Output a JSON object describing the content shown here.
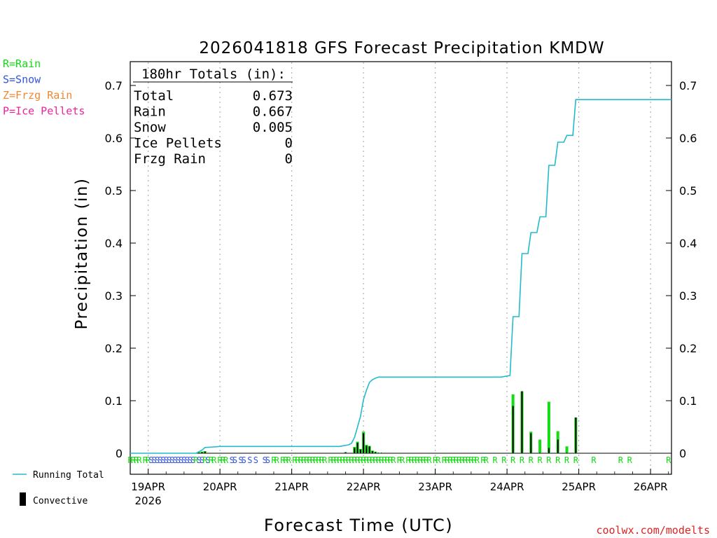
{
  "chart_data": {
    "type": "bar",
    "title": "2026041818 GFS Forecast Precipitation KMDW",
    "xlabel": "Forecast Time (UTC)",
    "ylabel": "Precipitation (in)",
    "ylim": [
      0,
      0.74
    ],
    "y_ticks": [
      0,
      0.1,
      0.2,
      0.3,
      0.4,
      0.5,
      0.6,
      0.7
    ],
    "y_tick_labels": [
      "0",
      "0.1",
      "0.2",
      "0.3",
      "0.4",
      "0.5",
      "0.6",
      "0.7"
    ],
    "x_unit": "hours since 2026-04-18 18Z",
    "xlim": [
      0,
      181
    ],
    "x_ticks": [
      {
        "hour": 6,
        "label": "19APR",
        "sublabel": "2026"
      },
      {
        "hour": 30,
        "label": "20APR",
        "sublabel": ""
      },
      {
        "hour": 54,
        "label": "21APR",
        "sublabel": ""
      },
      {
        "hour": 78,
        "label": "22APR",
        "sublabel": ""
      },
      {
        "hour": 102,
        "label": "23APR",
        "sublabel": ""
      },
      {
        "hour": 126,
        "label": "24APR",
        "sublabel": ""
      },
      {
        "hour": 150,
        "label": "25APR",
        "sublabel": ""
      },
      {
        "hour": 174,
        "label": "26APR",
        "sublabel": ""
      }
    ],
    "grid": "vertical dotted at day boundaries",
    "legend": {
      "types": [
        {
          "code": "R",
          "label": "R=Rain",
          "color": "#11dd11"
        },
        {
          "code": "S",
          "label": "S=Snow",
          "color": "#3355dd"
        },
        {
          "code": "Z",
          "label": "Z=Frzg Rain",
          "color": "#ee8833"
        },
        {
          "code": "P",
          "label": "P=Ice Pellets",
          "color": "#ee2299"
        }
      ],
      "running_total_label": "Running Total",
      "running_total_color": "#22bbcc",
      "convective_label": "Convective",
      "convective_color": "#000000"
    },
    "totals_box": {
      "heading": "180hr Totals (in):",
      "rows": [
        {
          "label": "Total",
          "value": "0.673"
        },
        {
          "label": "Rain",
          "value": "0.667"
        },
        {
          "label": "Snow",
          "value": "0.005"
        },
        {
          "label": "Ice Pellets",
          "value": "0"
        },
        {
          "label": "Frzg Rain",
          "value": "0"
        }
      ]
    },
    "running_total": [
      [
        0,
        0
      ],
      [
        22,
        0
      ],
      [
        24,
        0.006
      ],
      [
        25,
        0.011
      ],
      [
        28,
        0.012
      ],
      [
        30,
        0.013
      ],
      [
        60,
        0.013
      ],
      [
        70,
        0.013
      ],
      [
        73,
        0.016
      ],
      [
        74,
        0.019
      ],
      [
        75,
        0.03
      ],
      [
        76,
        0.05
      ],
      [
        77,
        0.07
      ],
      [
        78,
        0.102
      ],
      [
        79,
        0.12
      ],
      [
        80,
        0.135
      ],
      [
        81,
        0.14
      ],
      [
        82,
        0.143
      ],
      [
        83,
        0.145
      ],
      [
        124,
        0.145
      ],
      [
        126,
        0.147
      ],
      [
        127,
        0.148
      ],
      [
        128,
        0.26
      ],
      [
        130,
        0.26
      ],
      [
        131,
        0.38
      ],
      [
        133,
        0.38
      ],
      [
        134,
        0.42
      ],
      [
        136,
        0.42
      ],
      [
        137,
        0.45
      ],
      [
        139,
        0.45
      ],
      [
        140,
        0.548
      ],
      [
        142,
        0.548
      ],
      [
        143,
        0.592
      ],
      [
        145,
        0.592
      ],
      [
        146,
        0.605
      ],
      [
        148,
        0.605
      ],
      [
        149,
        0.673
      ],
      [
        181,
        0.673
      ]
    ],
    "bars": [
      {
        "hour": 23,
        "total": 0.002,
        "convective": 0.001
      },
      {
        "hour": 24,
        "total": 0.003,
        "convective": 0.002
      },
      {
        "hour": 25,
        "total": 0.004,
        "convective": 0.003
      },
      {
        "hour": 72,
        "total": 0.002,
        "convective": 0.002
      },
      {
        "hour": 75,
        "total": 0.012,
        "convective": 0.01
      },
      {
        "hour": 76,
        "total": 0.022,
        "convective": 0.02
      },
      {
        "hour": 77,
        "total": 0.008,
        "convective": 0.007
      },
      {
        "hour": 78,
        "total": 0.041,
        "convective": 0.038
      },
      {
        "hour": 79,
        "total": 0.016,
        "convective": 0.014
      },
      {
        "hour": 80,
        "total": 0.014,
        "convective": 0.013
      },
      {
        "hour": 81,
        "total": 0.005,
        "convective": 0.004
      },
      {
        "hour": 82,
        "total": 0.003,
        "convective": 0.002
      },
      {
        "hour": 83,
        "total": 0.001,
        "convective": 0.001
      },
      {
        "hour": 84,
        "total": 0.001,
        "convective": 0.001
      },
      {
        "hour": 128,
        "total": 0.112,
        "convective": 0.09
      },
      {
        "hour": 131,
        "total": 0.118,
        "convective": 0.118
      },
      {
        "hour": 134,
        "total": 0.041,
        "convective": 0.038
      },
      {
        "hour": 137,
        "total": 0.026,
        "convective": 0.001
      },
      {
        "hour": 140,
        "total": 0.098,
        "convective": 0.01
      },
      {
        "hour": 143,
        "total": 0.042,
        "convective": 0.026
      },
      {
        "hour": 146,
        "total": 0.013,
        "convective": 0.001
      },
      {
        "hour": 149,
        "total": 0.068,
        "convective": 0.068
      }
    ],
    "type_markers": [
      {
        "hour": 0,
        "type": "R"
      },
      {
        "hour": 1,
        "type": "R"
      },
      {
        "hour": 2,
        "type": "R"
      },
      {
        "hour": 3,
        "type": "R"
      },
      {
        "hour": 5,
        "type": "R"
      },
      {
        "hour": 6,
        "type": "R"
      },
      {
        "hour": 7,
        "type": "S"
      },
      {
        "hour": 8,
        "type": "S"
      },
      {
        "hour": 9,
        "type": "S"
      },
      {
        "hour": 10,
        "type": "S"
      },
      {
        "hour": 11,
        "type": "S"
      },
      {
        "hour": 12,
        "type": "S"
      },
      {
        "hour": 13,
        "type": "S"
      },
      {
        "hour": 14,
        "type": "S"
      },
      {
        "hour": 15,
        "type": "S"
      },
      {
        "hour": 16,
        "type": "S"
      },
      {
        "hour": 17,
        "type": "S"
      },
      {
        "hour": 18,
        "type": "S"
      },
      {
        "hour": 19,
        "type": "S"
      },
      {
        "hour": 20,
        "type": "S"
      },
      {
        "hour": 21,
        "type": "S"
      },
      {
        "hour": 22,
        "type": "R"
      },
      {
        "hour": 23,
        "type": "S"
      },
      {
        "hour": 24,
        "type": "S"
      },
      {
        "hour": 25,
        "type": "R"
      },
      {
        "hour": 26,
        "type": "S"
      },
      {
        "hour": 27,
        "type": "R"
      },
      {
        "hour": 28,
        "type": "R"
      },
      {
        "hour": 30,
        "type": "R"
      },
      {
        "hour": 31,
        "type": "R"
      },
      {
        "hour": 32,
        "type": "R"
      },
      {
        "hour": 34,
        "type": "S"
      },
      {
        "hour": 35,
        "type": "S"
      },
      {
        "hour": 37,
        "type": "S"
      },
      {
        "hour": 38,
        "type": "S"
      },
      {
        "hour": 40,
        "type": "S"
      },
      {
        "hour": 42,
        "type": "S"
      },
      {
        "hour": 45,
        "type": "S"
      },
      {
        "hour": 46,
        "type": "S"
      },
      {
        "hour": 48,
        "type": "R"
      },
      {
        "hour": 49,
        "type": "R"
      },
      {
        "hour": 51,
        "type": "R"
      },
      {
        "hour": 52,
        "type": "R"
      },
      {
        "hour": 53,
        "type": "R"
      },
      {
        "hour": 55,
        "type": "R"
      },
      {
        "hour": 56,
        "type": "R"
      },
      {
        "hour": 57,
        "type": "R"
      },
      {
        "hour": 58,
        "type": "R"
      },
      {
        "hour": 59,
        "type": "R"
      },
      {
        "hour": 60,
        "type": "R"
      },
      {
        "hour": 61,
        "type": "R"
      },
      {
        "hour": 62,
        "type": "R"
      },
      {
        "hour": 63,
        "type": "R"
      },
      {
        "hour": 64,
        "type": "R"
      },
      {
        "hour": 65,
        "type": "R"
      },
      {
        "hour": 67,
        "type": "R"
      },
      {
        "hour": 68,
        "type": "R"
      },
      {
        "hour": 69,
        "type": "R"
      },
      {
        "hour": 70,
        "type": "R"
      },
      {
        "hour": 71,
        "type": "R"
      },
      {
        "hour": 72,
        "type": "R"
      },
      {
        "hour": 73,
        "type": "R"
      },
      {
        "hour": 74,
        "type": "R"
      },
      {
        "hour": 75,
        "type": "R"
      },
      {
        "hour": 76,
        "type": "R"
      },
      {
        "hour": 77,
        "type": "R"
      },
      {
        "hour": 78,
        "type": "R"
      },
      {
        "hour": 79,
        "type": "R"
      },
      {
        "hour": 80,
        "type": "R"
      },
      {
        "hour": 81,
        "type": "R"
      },
      {
        "hour": 82,
        "type": "R"
      },
      {
        "hour": 83,
        "type": "R"
      },
      {
        "hour": 84,
        "type": "R"
      },
      {
        "hour": 85,
        "type": "R"
      },
      {
        "hour": 86,
        "type": "R"
      },
      {
        "hour": 87,
        "type": "R"
      },
      {
        "hour": 88,
        "type": "R"
      },
      {
        "hour": 90,
        "type": "R"
      },
      {
        "hour": 91,
        "type": "R"
      },
      {
        "hour": 93,
        "type": "R"
      },
      {
        "hour": 94,
        "type": "R"
      },
      {
        "hour": 95,
        "type": "R"
      },
      {
        "hour": 96,
        "type": "R"
      },
      {
        "hour": 97,
        "type": "R"
      },
      {
        "hour": 98,
        "type": "R"
      },
      {
        "hour": 99,
        "type": "R"
      },
      {
        "hour": 100,
        "type": "R"
      },
      {
        "hour": 102,
        "type": "R"
      },
      {
        "hour": 103,
        "type": "R"
      },
      {
        "hour": 105,
        "type": "R"
      },
      {
        "hour": 106,
        "type": "R"
      },
      {
        "hour": 107,
        "type": "R"
      },
      {
        "hour": 108,
        "type": "R"
      },
      {
        "hour": 109,
        "type": "R"
      },
      {
        "hour": 110,
        "type": "R"
      },
      {
        "hour": 111,
        "type": "R"
      },
      {
        "hour": 112,
        "type": "R"
      },
      {
        "hour": 113,
        "type": "R"
      },
      {
        "hour": 114,
        "type": "R"
      },
      {
        "hour": 115,
        "type": "R"
      },
      {
        "hour": 116,
        "type": "R"
      },
      {
        "hour": 118,
        "type": "R"
      },
      {
        "hour": 119,
        "type": "R"
      },
      {
        "hour": 122,
        "type": "R"
      },
      {
        "hour": 125,
        "type": "R"
      },
      {
        "hour": 128,
        "type": "R"
      },
      {
        "hour": 131,
        "type": "R"
      },
      {
        "hour": 134,
        "type": "R"
      },
      {
        "hour": 137,
        "type": "R"
      },
      {
        "hour": 140,
        "type": "R"
      },
      {
        "hour": 143,
        "type": "R"
      },
      {
        "hour": 146,
        "type": "R"
      },
      {
        "hour": 149,
        "type": "R"
      },
      {
        "hour": 155,
        "type": "R"
      },
      {
        "hour": 164,
        "type": "R"
      },
      {
        "hour": 167,
        "type": "R"
      },
      {
        "hour": 180,
        "type": "R"
      }
    ]
  },
  "credit": "coolwx.com/modelts"
}
